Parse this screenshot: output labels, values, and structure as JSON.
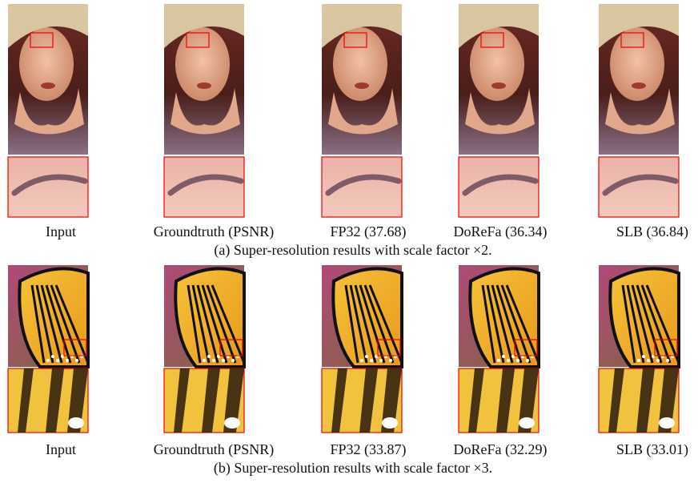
{
  "figures": [
    {
      "caption": "(a) Super-resolution results with scale factor ×2.",
      "labels": [
        "Input",
        "Groundtruth (PSNR)",
        "FP32 (37.68)",
        "DoReFa (36.34)",
        "SLB (36.84)"
      ]
    },
    {
      "caption": "(b) Super-resolution results with scale factor ×3.",
      "labels": [
        "Input",
        "Groundtruth (PSNR)",
        "FP32 (33.87)",
        "DoReFa (32.29)",
        "SLB (33.01)"
      ]
    }
  ]
}
